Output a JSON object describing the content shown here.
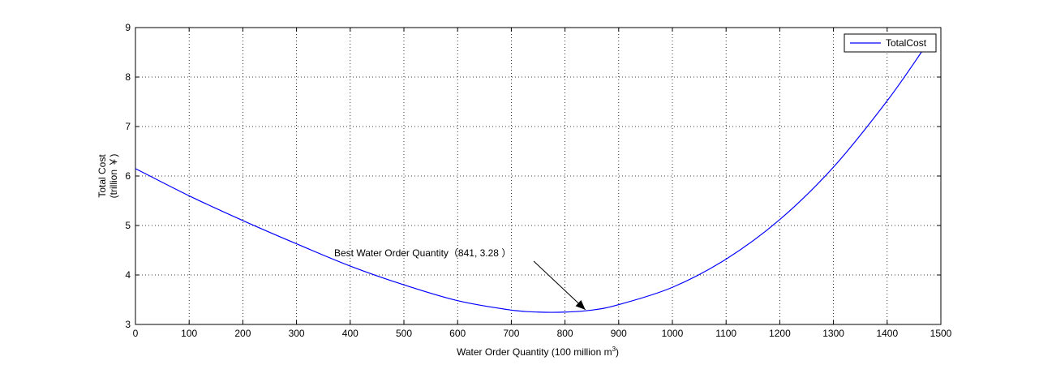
{
  "chart_data": {
    "type": "line",
    "xlabel_main": "Water Order Quantity (100 million m",
    "xlabel_sup": "3",
    "xlabel_end": ")",
    "ylabel_line1": "Total Cost",
    "ylabel_line2": "(trillion ￥)",
    "xlim": [
      0,
      1500
    ],
    "ylim": [
      3,
      9
    ],
    "xticks": [
      "0",
      "100",
      "200",
      "300",
      "400",
      "500",
      "600",
      "700",
      "800",
      "900",
      "1000",
      "1100",
      "1200",
      "1300",
      "1400",
      "1500"
    ],
    "yticks": [
      "3",
      "4",
      "5",
      "6",
      "7",
      "8",
      "9"
    ],
    "grid": true,
    "legend_position": "top-right",
    "series": [
      {
        "name": "TotalCost",
        "color": "#0000ff",
        "x": [
          0,
          100,
          200,
          300,
          400,
          500,
          600,
          700,
          750,
          800,
          850,
          900,
          1000,
          1100,
          1200,
          1300,
          1400,
          1470
        ],
        "y": [
          6.15,
          5.6,
          5.1,
          4.63,
          4.18,
          3.8,
          3.48,
          3.29,
          3.25,
          3.25,
          3.29,
          3.4,
          3.75,
          4.32,
          5.12,
          6.18,
          7.52,
          8.6
        ]
      }
    ],
    "annotation": {
      "text": "Best Water Order Quantity（841, 3.28 ）",
      "x": 841,
      "y": 3.28
    }
  }
}
